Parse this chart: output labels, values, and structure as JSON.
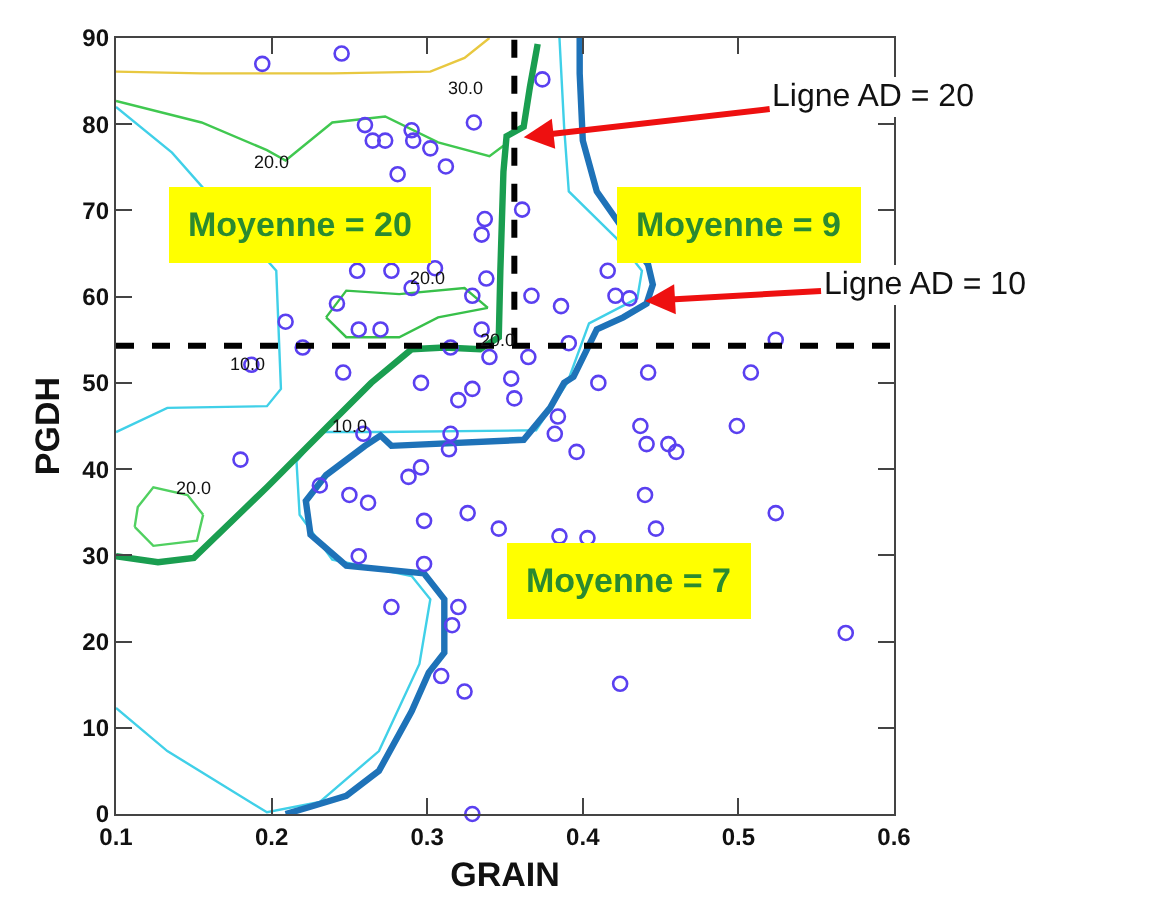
{
  "chart_data": {
    "type": "scatter",
    "xlabel": "GRAIN",
    "ylabel": "PGDH",
    "xlim": [
      0.1,
      0.6
    ],
    "xticks": [
      0.1,
      0.2,
      0.3,
      0.4,
      0.5,
      0.6
    ],
    "ylim": [
      0,
      90
    ],
    "yticks": [
      0,
      10,
      20,
      30,
      40,
      50,
      60,
      70,
      80,
      90
    ],
    "series": [
      {
        "type": "line",
        "color": "#e8c840",
        "line_style": "solid",
        "x": [
          0.1,
          0.155,
          0.239,
          0.302,
          0.324,
          0.34
        ],
        "values": [
          86.1,
          85.9,
          85.9,
          86.1,
          87.7,
          90
        ]
      },
      {
        "type": "line",
        "color": "#40c850",
        "line_style": "solid",
        "x": [
          0.1,
          0.155,
          0.197,
          0.209,
          0.239,
          0.273,
          0.307,
          0.34,
          0.349
        ],
        "values": [
          82.7,
          80.2,
          77.0,
          75.8,
          80.2,
          80.9,
          77.9,
          76.3,
          77.5
        ]
      },
      {
        "type": "line",
        "color": "#38c04a",
        "line_style": "solid",
        "x": [
          0.235,
          0.248,
          0.282,
          0.324,
          0.339
        ],
        "values": [
          57.6,
          60.7,
          60.3,
          61.0,
          58.7
        ]
      },
      {
        "type": "line",
        "color": "#38c04a",
        "line_style": "solid",
        "x": [
          0.235,
          0.248,
          0.282,
          0.307,
          0.339
        ],
        "values": [
          57.6,
          55.3,
          55.3,
          57.6,
          58.7
        ]
      },
      {
        "type": "line",
        "color": "#50d060",
        "line_style": "solid",
        "x": [
          0.112,
          0.114,
          0.124,
          0.146,
          0.156
        ],
        "values": [
          33.3,
          35.6,
          37.9,
          37.0,
          34.7
        ]
      },
      {
        "type": "line",
        "color": "#50d060",
        "line_style": "solid",
        "x": [
          0.112,
          0.124,
          0.152,
          0.156
        ],
        "values": [
          33.3,
          31.1,
          31.7,
          34.7
        ]
      },
      {
        "type": "line",
        "color": "#40d0e8",
        "line_style": "solid",
        "x": [
          0.1,
          0.133,
          0.197,
          0.206,
          0.203,
          0.136,
          0.1
        ],
        "values": [
          44.3,
          47.1,
          47.3,
          49.3,
          63.0,
          76.7,
          82.0
        ]
      },
      {
        "type": "line",
        "color": "#40d0e8",
        "line_style": "solid",
        "x": [
          0.1,
          0.133,
          0.197,
          0.231,
          0.269,
          0.295,
          0.302,
          0.29,
          0.239,
          0.218,
          0.216,
          0.232,
          0.269,
          0.37,
          0.39,
          0.404,
          0.435,
          0.438,
          0.422,
          0.391,
          0.388,
          0.385
        ],
        "values": [
          12.3,
          7.3,
          0.2,
          1.4,
          7.3,
          17.4,
          24.9,
          27.6,
          29.5,
          34.7,
          40.9,
          44.3,
          44.3,
          44.5,
          50.0,
          56.9,
          59.8,
          63.0,
          66.7,
          72.2,
          79.7,
          90
        ]
      },
      {
        "type": "line",
        "color": "#1a9e50",
        "line_style": "solid",
        "x": [
          0.1,
          0.127,
          0.15,
          0.197,
          0.239,
          0.264,
          0.29,
          0.311,
          0.334,
          0.346,
          0.347,
          0.349,
          0.351,
          0.362,
          0.366,
          0.371
        ],
        "values": [
          29.9,
          29.2,
          29.7,
          37.9,
          45.5,
          50.0,
          53.9,
          54.1,
          53.9,
          55.3,
          63.0,
          74.5,
          78.6,
          79.7,
          84.3,
          89.3
        ]
      },
      {
        "type": "line",
        "color": "#1e72b8",
        "line_style": "solid",
        "x": [
          0.209,
          0.226,
          0.248,
          0.269,
          0.29,
          0.301,
          0.311,
          0.311,
          0.298,
          0.248,
          0.225,
          0.222,
          0.235,
          0.26,
          0.27,
          0.277,
          0.362,
          0.379,
          0.388,
          0.394,
          0.409,
          0.426,
          0.441,
          0.445,
          0.442,
          0.409,
          0.4,
          0.398,
          0.398
        ],
        "values": [
          0,
          0.9,
          2.1,
          5.0,
          11.9,
          16.4,
          18.7,
          24.9,
          27.9,
          28.8,
          32.4,
          36.3,
          39.3,
          42.7,
          43.9,
          42.7,
          43.4,
          47.1,
          50.0,
          50.7,
          56.2,
          57.6,
          59.2,
          61.4,
          63.7,
          72.2,
          78.1,
          85.9,
          90
        ]
      },
      {
        "color": "#5a40f0",
        "marker": "circle",
        "x": [
          0.194,
          0.245,
          0.26,
          0.265,
          0.273,
          0.29,
          0.291,
          0.302,
          0.312,
          0.33,
          0.281,
          0.374,
          0.337,
          0.361,
          0.335,
          0.255,
          0.277,
          0.29,
          0.305,
          0.338,
          0.329,
          0.367,
          0.386,
          0.416,
          0.421,
          0.43,
          0.242,
          0.256,
          0.27,
          0.209,
          0.22,
          0.315,
          0.335,
          0.187,
          0.246,
          0.296,
          0.329,
          0.365,
          0.391,
          0.354,
          0.41,
          0.442,
          0.508,
          0.524,
          0.34,
          0.32,
          0.356,
          0.259,
          0.315,
          0.314,
          0.18,
          0.296,
          0.288,
          0.231,
          0.25,
          0.262,
          0.298,
          0.326,
          0.346,
          0.256,
          0.298,
          0.277,
          0.32,
          0.316,
          0.309,
          0.324,
          0.329,
          0.384,
          0.382,
          0.396,
          0.437,
          0.441,
          0.455,
          0.46,
          0.499,
          0.44,
          0.385,
          0.403,
          0.447,
          0.524,
          0.569,
          0.424
        ],
        "values": [
          87.0,
          88.2,
          79.9,
          78.1,
          78.1,
          79.3,
          78.1,
          77.2,
          75.1,
          80.2,
          74.2,
          85.2,
          69.0,
          70.1,
          67.2,
          63.0,
          63.0,
          61.0,
          63.3,
          62.1,
          60.1,
          60.1,
          58.9,
          63.0,
          60.1,
          59.8,
          59.2,
          56.2,
          56.2,
          57.1,
          54.1,
          54.1,
          56.2,
          52.1,
          51.2,
          50.0,
          49.3,
          53.0,
          54.6,
          50.5,
          50.0,
          51.2,
          51.2,
          55.0,
          53.0,
          48.0,
          48.2,
          44.1,
          44.1,
          42.3,
          41.1,
          40.2,
          39.1,
          38.1,
          37.0,
          36.1,
          34.0,
          34.9,
          33.1,
          29.9,
          29.0,
          24.0,
          24.0,
          21.9,
          16.0,
          14.2,
          0.0,
          46.1,
          44.1,
          42.0,
          45.0,
          42.9,
          42.9,
          42.0,
          45.0,
          37.0,
          32.2,
          32.0,
          33.1,
          34.9,
          21.0,
          15.1
        ]
      }
    ],
    "ref_lines": [
      {
        "axis": "y",
        "value": 54.3,
        "color": "#000000",
        "line_style": "dashed"
      },
      {
        "axis": "x",
        "value": 0.356,
        "color": "#000000",
        "line_style": "dashed"
      }
    ],
    "annotations": [
      "30.0",
      "20.0",
      "20.0",
      "20.0",
      "20.0",
      "10.0",
      "10.0",
      "Moyenne = 20",
      "Moyenne = 9",
      "Moyenne = 7",
      {
        "text": "Ligne AD = 20",
        "x": 0.362,
        "y": 78.5
      },
      {
        "text": "Ligne AD = 10",
        "x": 0.44,
        "y": 59.5
      }
    ]
  }
}
